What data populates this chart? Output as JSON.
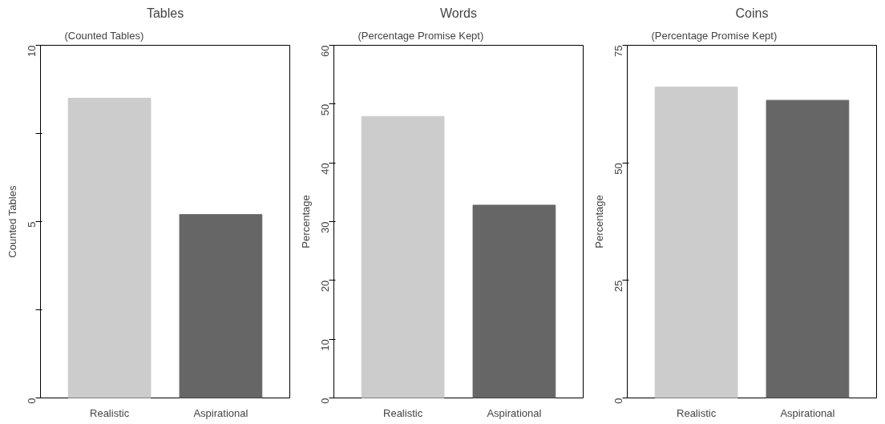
{
  "chart_data": [
    {
      "type": "bar",
      "title": "Tables",
      "subtitle": "(Counted Tables)",
      "ylabel": "Counted Tables",
      "categories": [
        "Realistic",
        "Aspirational"
      ],
      "colors": [
        "#cccccc",
        "#666666"
      ],
      "values": [
        8.5,
        5.2
      ],
      "ylim": [
        0,
        10
      ],
      "yticks": [
        0,
        {
          "value": 2.5,
          "label": null
        },
        5,
        {
          "value": 7.5,
          "label": null
        },
        10
      ]
    },
    {
      "type": "bar",
      "title": "Words",
      "subtitle": "(Percentage Promise Kept)",
      "ylabel": "Percentage",
      "categories": [
        "Realistic",
        "Aspirational"
      ],
      "colors": [
        "#cccccc",
        "#666666"
      ],
      "values": [
        47.9,
        32.8
      ],
      "ylim": [
        0,
        60
      ],
      "yticks": [
        0,
        10,
        20,
        30,
        40,
        50,
        60
      ]
    },
    {
      "type": "bar",
      "title": "Coins",
      "subtitle": "(Percentage Promise Kept)",
      "ylabel": "Percentage",
      "categories": [
        "Realistic",
        "Aspirational"
      ],
      "colors": [
        "#cccccc",
        "#666666"
      ],
      "values": [
        66.1,
        63.3
      ],
      "ylim": [
        0,
        75
      ],
      "yticks": [
        0,
        25,
        50,
        75
      ]
    }
  ]
}
